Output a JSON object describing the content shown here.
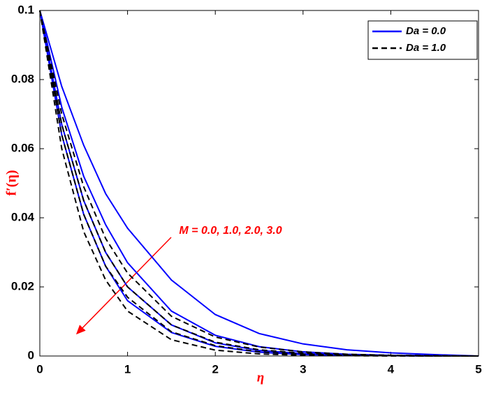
{
  "chart_data": {
    "type": "line",
    "x": [
      0,
      0.25,
      0.5,
      0.75,
      1,
      1.5,
      2,
      2.5,
      3,
      3.5,
      4,
      4.5,
      5
    ],
    "series": [
      {
        "name": "Da = 0.0",
        "color": "#0000ff",
        "dashed": false,
        "values": [
          [
            0.1,
            0.078,
            0.061,
            0.047,
            0.037,
            0.022,
            0.012,
            0.0065,
            0.0035,
            0.0018,
            0.0009,
            0.0004,
            0
          ],
          [
            0.1,
            0.072,
            0.052,
            0.038,
            0.027,
            0.013,
            0.006,
            0.0027,
            0.0012,
            0.0005,
            0.0002,
            0.0001,
            0
          ],
          [
            0.1,
            0.067,
            0.045,
            0.03,
            0.02,
            0.009,
            0.0038,
            0.0016,
            0.0007,
            0.0003,
            0.0001,
            0,
            0
          ],
          [
            0.1,
            0.064,
            0.041,
            0.026,
            0.016,
            0.0068,
            0.0028,
            0.0011,
            0.0004,
            0.0002,
            0.0001,
            0,
            0
          ]
        ]
      },
      {
        "name": "Da = 1.0",
        "color": "#000000",
        "dashed": true,
        "values": [
          [
            0.1,
            0.07,
            0.049,
            0.034,
            0.024,
            0.0115,
            0.0055,
            0.0026,
            0.0012,
            0.0005,
            0.0002,
            0.0001,
            0
          ],
          [
            0.1,
            0.067,
            0.045,
            0.03,
            0.02,
            0.009,
            0.004,
            0.0018,
            0.0008,
            0.0003,
            0.0001,
            0,
            0
          ],
          [
            0.1,
            0.064,
            0.041,
            0.026,
            0.017,
            0.007,
            0.003,
            0.0012,
            0.0005,
            0.0002,
            0.0001,
            0,
            0
          ],
          [
            0.1,
            0.06,
            0.036,
            0.022,
            0.013,
            0.0047,
            0.0017,
            0.0006,
            0.0002,
            0.0001,
            0,
            0,
            0
          ]
        ]
      }
    ],
    "xlabel": "η",
    "ylabel": "f′(η)",
    "annotation": "M = 0.0, 1.0, 2.0, 3.0",
    "xlim": [
      0,
      5
    ],
    "xticks": [
      0,
      1,
      2,
      3,
      4,
      5
    ],
    "ylim": [
      0,
      0.1
    ],
    "yticks": [
      0,
      0.02,
      0.04,
      0.06,
      0.08,
      0.1
    ],
    "legend": "upper right"
  }
}
